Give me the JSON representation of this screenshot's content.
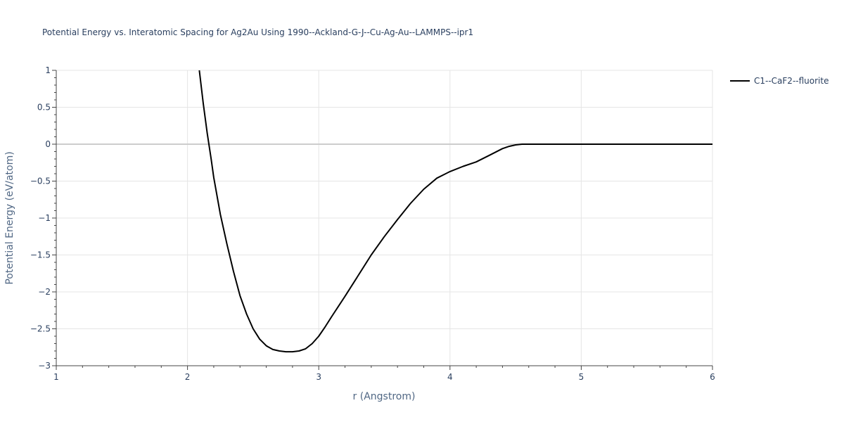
{
  "chart_data": {
    "type": "line",
    "title": "Potential Energy vs. Interatomic Spacing for Ag2Au Using 1990--Ackland-G-J--Cu-Ag-Au--LAMMPS--ipr1",
    "xlabel": "r (Angstrom)",
    "ylabel": "Potential Energy (eV/atom)",
    "xlim": [
      1,
      6
    ],
    "ylim": [
      -3,
      1
    ],
    "xticks": [
      1,
      2,
      3,
      4,
      5,
      6
    ],
    "xtick_labels": [
      "1",
      "2",
      "3",
      "4",
      "5",
      "6"
    ],
    "yticks": [
      1,
      0.5,
      0,
      -0.5,
      -1,
      -1.5,
      -2,
      -2.5,
      -3
    ],
    "ytick_labels": [
      "1",
      "0.5",
      "0",
      "−0.5",
      "−1",
      "−1.5",
      "−2",
      "−2.5",
      "−3"
    ],
    "grid": true,
    "legend_position": "top-right-outside",
    "series": [
      {
        "name": "C1--CaF2--fluorite",
        "color": "#000000",
        "x": [
          2.09,
          2.12,
          2.15,
          2.18,
          2.2,
          2.25,
          2.3,
          2.35,
          2.4,
          2.45,
          2.5,
          2.55,
          2.6,
          2.65,
          2.7,
          2.75,
          2.8,
          2.85,
          2.9,
          2.95,
          3.0,
          3.05,
          3.1,
          3.2,
          3.3,
          3.4,
          3.5,
          3.6,
          3.7,
          3.8,
          3.9,
          4.0,
          4.1,
          4.2,
          4.3,
          4.4,
          4.45,
          4.5,
          4.55,
          4.6,
          4.7,
          5.0,
          5.5,
          6.0
        ],
        "y": [
          1.0,
          0.55,
          0.15,
          -0.2,
          -0.45,
          -0.95,
          -1.35,
          -1.72,
          -2.05,
          -2.3,
          -2.5,
          -2.64,
          -2.73,
          -2.78,
          -2.8,
          -2.81,
          -2.81,
          -2.8,
          -2.77,
          -2.7,
          -2.6,
          -2.47,
          -2.33,
          -2.06,
          -1.78,
          -1.5,
          -1.25,
          -1.02,
          -0.8,
          -0.61,
          -0.46,
          -0.37,
          -0.3,
          -0.24,
          -0.15,
          -0.06,
          -0.03,
          -0.01,
          0.0,
          0.0,
          0.0,
          0.0,
          0.0,
          0.0
        ]
      }
    ]
  }
}
